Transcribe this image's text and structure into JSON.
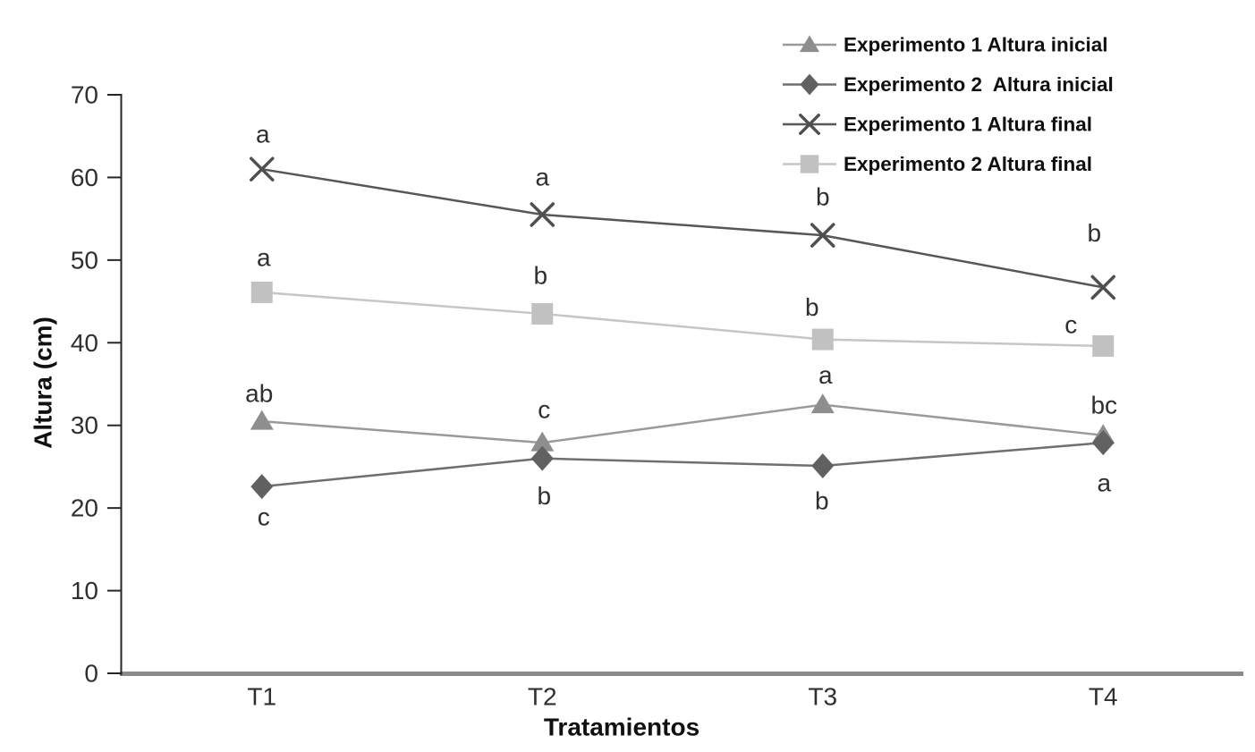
{
  "chart": {
    "background": "#ffffff",
    "y_axis_color": "#262626",
    "x_axis_line_color": "#8a8a8a",
    "tick_text_color": "#2f2f2f",
    "annotation_text_color": "#2f2f2f",
    "title_text_color": "#111111",
    "legend_text_color": "#0f0f0f"
  },
  "chart_data": {
    "type": "line",
    "title": "",
    "xlabel": "Tratamientos",
    "ylabel": "Altura (cm)",
    "ylim": [
      0,
      70
    ],
    "yticks": [
      0,
      10,
      20,
      30,
      40,
      50,
      60,
      70
    ],
    "categories": [
      "T1",
      "T2",
      "T3",
      "T4"
    ],
    "grid": false,
    "legend_position": "top-right",
    "series": [
      {
        "name": "Experimento 1 Altura inicial",
        "marker": "triangle",
        "marker_color": "#8e8e8e",
        "line_color": "#9a9a9a",
        "values": [
          30.5,
          27.9,
          32.5,
          28.8
        ],
        "point_labels": [
          {
            "text": "ab",
            "dx": -3,
            "dy": -31
          },
          {
            "text": "c",
            "dx": 2,
            "dy": -37
          },
          {
            "text": "a",
            "dx": 3,
            "dy": -33
          },
          {
            "text": "bc",
            "dx": 1,
            "dy": -34
          }
        ]
      },
      {
        "name": "Experimento 2  Altura inicial",
        "marker": "diamond",
        "marker_color": "#616161",
        "line_color": "#6f6f6f",
        "values": [
          22.6,
          26.0,
          25.1,
          27.9
        ],
        "point_labels": [
          {
            "text": "c",
            "dx": 2,
            "dy": 34
          },
          {
            "text": "b",
            "dx": 2,
            "dy": 42
          },
          {
            "text": "b",
            "dx": -1,
            "dy": 39
          },
          {
            "text": "a",
            "dx": 1,
            "dy": 45
          }
        ]
      },
      {
        "name": "Experimento 1 Altura final",
        "marker": "x",
        "marker_color": "#4f4f4f",
        "line_color": "#575757",
        "values": [
          61.0,
          55.5,
          53.0,
          46.7
        ],
        "point_labels": [
          {
            "text": "a",
            "dx": 1,
            "dy": -39
          },
          {
            "text": "a",
            "dx": 0,
            "dy": -42
          },
          {
            "text": "b",
            "dx": 0,
            "dy": -43
          },
          {
            "text": "b",
            "dx": -10,
            "dy": -61
          }
        ]
      },
      {
        "name": "Experimento 2 Altura final",
        "marker": "square",
        "marker_color": "#c1c1c1",
        "line_color": "#c6c6c6",
        "values": [
          46.1,
          43.5,
          40.4,
          39.6
        ],
        "point_labels": [
          {
            "text": "a",
            "dx": 2,
            "dy": -39
          },
          {
            "text": "b",
            "dx": -2,
            "dy": -43
          },
          {
            "text": "b",
            "dx": -12,
            "dy": -36
          },
          {
            "text": "c",
            "dx": -36,
            "dy": -24
          }
        ]
      }
    ]
  }
}
